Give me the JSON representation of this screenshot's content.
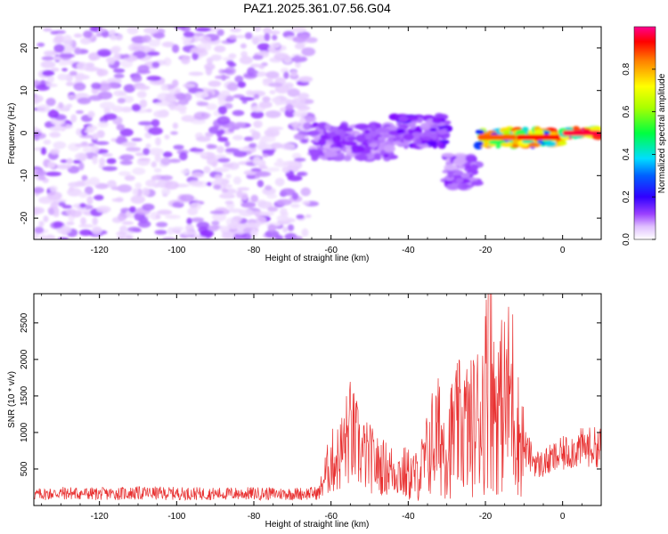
{
  "figure": {
    "title": "PAZ1.2025.361.07.56.G04"
  },
  "colormap": [
    "#ffffff",
    "#e3c4ff",
    "#a45cff",
    "#7a00ff",
    "#0000ff",
    "#00ccff",
    "#00ff66",
    "#aaff00",
    "#ffff00",
    "#ff8800",
    "#ff0000",
    "#ff0088"
  ],
  "line_color": "#e83030",
  "chart_data": [
    {
      "type": "heatmap",
      "title": "PAZ1.2025.361.07.56.G04",
      "xlabel": "Height of straight line (km)",
      "ylabel": "Frequency (Hz)",
      "xlim": [
        -137,
        10
      ],
      "ylim": [
        -25,
        25
      ],
      "xticks": [
        "-120",
        "-100",
        "-80",
        "-60",
        "-40",
        "-20",
        "0"
      ],
      "xtick_values": [
        -120,
        -100,
        -80,
        -60,
        -40,
        -20,
        0
      ],
      "yticks": [
        "-20",
        "-10",
        "0",
        "10",
        "20"
      ],
      "ytick_values": [
        -20,
        -10,
        0,
        10,
        20
      ],
      "colorbar": {
        "label": "Normalized spectral amplitude",
        "range": [
          0,
          1
        ],
        "ticks": [
          "0.0",
          "0.2",
          "0.4",
          "0.6",
          "0.8"
        ],
        "tick_values": [
          0.0,
          0.2,
          0.4,
          0.6,
          0.8
        ]
      },
      "features": [
        {
          "x": [
            -137,
            -65
          ],
          "y": [
            -25,
            25
          ],
          "amplitude": 0.05,
          "description_level": "noise"
        },
        {
          "x": [
            -65,
            -44
          ],
          "y": [
            -6,
            2
          ],
          "amplitude": 0.25
        },
        {
          "x": [
            -44,
            -30
          ],
          "y": [
            -3,
            4
          ],
          "amplitude": 0.3
        },
        {
          "x": [
            -30,
            -22
          ],
          "y": [
            -13,
            -5
          ],
          "amplitude": 0.25
        },
        {
          "x": [
            -22,
            -12
          ],
          "y": [
            -3,
            1
          ],
          "amplitude": 0.85
        },
        {
          "x": [
            -12,
            0
          ],
          "y": [
            -3,
            1
          ],
          "amplitude": 0.9
        },
        {
          "x": [
            0,
            10
          ],
          "y": [
            -1,
            1
          ],
          "amplitude": 0.95
        }
      ]
    },
    {
      "type": "line",
      "xlabel": "Height of straight line (km)",
      "ylabel": "SNR (10 * v/v)",
      "xlim": [
        -137,
        10
      ],
      "ylim": [
        0,
        2900
      ],
      "xticks": [
        "-120",
        "-100",
        "-80",
        "-60",
        "-40",
        "-20",
        "0"
      ],
      "xtick_values": [
        -120,
        -100,
        -80,
        -60,
        -40,
        -20,
        0
      ],
      "yticks": [
        "500",
        "1000",
        "1500",
        "2000",
        "2500"
      ],
      "ytick_values": [
        500,
        1000,
        1500,
        2000,
        2500
      ],
      "series": [
        {
          "name": "SNR",
          "x": [
            -137,
            -130,
            -120,
            -110,
            -100,
            -90,
            -80,
            -70,
            -63,
            -62,
            -60,
            -58,
            -56,
            -55,
            -52,
            -50,
            -48,
            -45,
            -42,
            -40,
            -38,
            -36,
            -34,
            -32,
            -30,
            -28,
            -26,
            -24,
            -22,
            -20,
            -19,
            -18,
            -16,
            -14,
            -13,
            -12,
            -10,
            -8,
            -6,
            -4,
            -2,
            0,
            2,
            4,
            6,
            8,
            10
          ],
          "y": [
            150,
            170,
            160,
            170,
            165,
            160,
            165,
            160,
            170,
            350,
            600,
            650,
            900,
            1000,
            700,
            650,
            550,
            500,
            450,
            420,
            400,
            550,
            850,
            950,
            800,
            1000,
            1100,
            1050,
            1200,
            1500,
            2000,
            1400,
            1350,
            1500,
            1550,
            1050,
            800,
            650,
            550,
            600,
            650,
            700,
            750,
            780,
            800,
            800,
            800
          ]
        }
      ]
    }
  ]
}
